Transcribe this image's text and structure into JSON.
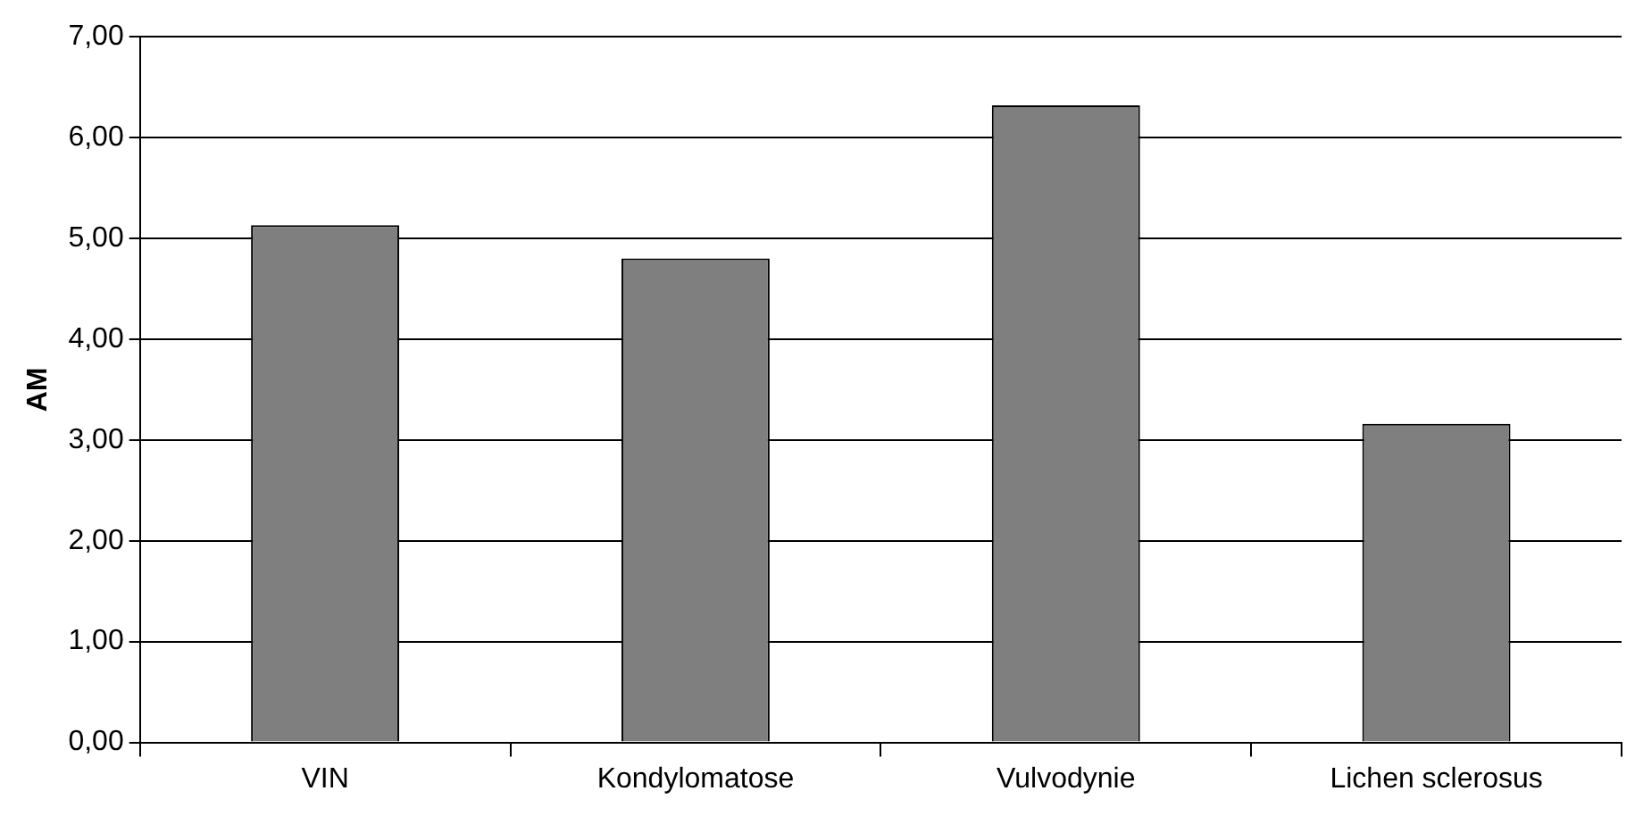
{
  "chart_data": {
    "type": "bar",
    "ylabel": "AM",
    "categories": [
      "VIN",
      "Kondylomatose",
      "Vulvodynie",
      "Lichen sclerosus"
    ],
    "values": [
      5.13,
      4.8,
      6.32,
      3.16
    ],
    "color": "#7f7f7f",
    "ylim": [
      0,
      7
    ],
    "yticks": [
      {
        "value": 0,
        "label": "0,00"
      },
      {
        "value": 1,
        "label": "1,00"
      },
      {
        "value": 2,
        "label": "2,00"
      },
      {
        "value": 3,
        "label": "3,00"
      },
      {
        "value": 4,
        "label": "4,00"
      },
      {
        "value": 5,
        "label": "5,00"
      },
      {
        "value": 6,
        "label": "6,00"
      },
      {
        "value": 7,
        "label": "7,00"
      }
    ],
    "grid": "y"
  }
}
